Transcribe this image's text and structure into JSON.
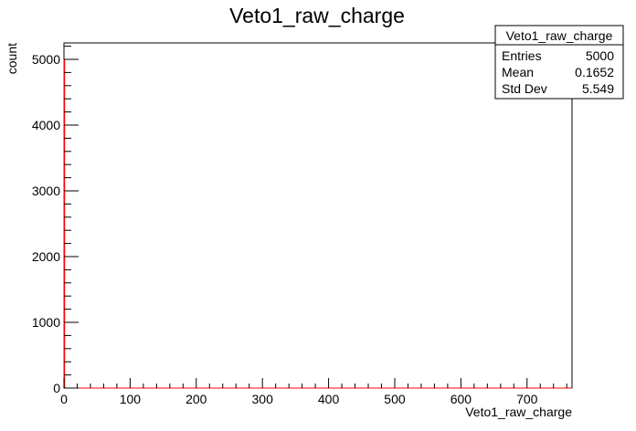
{
  "chart_data": {
    "type": "histogram",
    "title": "Veto1_raw_charge",
    "xlabel": "Veto1_raw_charge",
    "ylabel": "count",
    "xlim": [
      0,
      768
    ],
    "ylim": [
      0,
      5250
    ],
    "x_ticks": [
      0,
      100,
      200,
      300,
      400,
      500,
      600,
      700
    ],
    "x_tick_labels": [
      "0",
      "100",
      "200",
      "300",
      "400",
      "500",
      "600",
      "700"
    ],
    "y_ticks": [
      0,
      1000,
      2000,
      3000,
      4000,
      5000
    ],
    "y_tick_labels": [
      "0",
      "1000",
      "2000",
      "3000",
      "4000",
      "5000"
    ],
    "bin_width": 1,
    "bins": [
      {
        "x0": 0,
        "x1": 1,
        "count": 4996
      },
      {
        "x0": 1,
        "x1": 2,
        "count": 1
      },
      {
        "x0": 2,
        "x1": 3,
        "count": 1
      },
      {
        "x0": 3,
        "x1": 4,
        "count": 1
      },
      {
        "x0": 400,
        "x1": 401,
        "count": 1
      }
    ],
    "line_color": "#ff0000",
    "grid": false,
    "stats_box": {
      "title": "Veto1_raw_charge",
      "rows": [
        {
          "label": "Entries",
          "value": "5000"
        },
        {
          "label": "Mean",
          "value": "0.1652"
        },
        {
          "label": "Std Dev",
          "value": "5.549"
        }
      ],
      "placement": "top-right"
    }
  }
}
